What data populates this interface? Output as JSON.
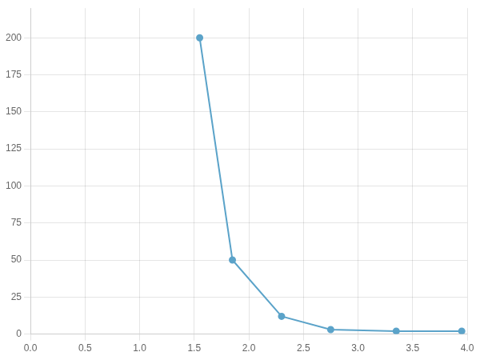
{
  "chart_data": {
    "type": "line",
    "x": [
      1.55,
      1.85,
      2.3,
      2.75,
      3.35,
      3.95
    ],
    "values": [
      200,
      50,
      12,
      3,
      2,
      2
    ],
    "color": "#5ba3c9",
    "marker": "circle",
    "xlim": [
      0.0,
      4.0
    ],
    "xticks": [
      {
        "value": 0,
        "label": "0.0"
      },
      0.5,
      {
        "value": 1,
        "label": "1.0"
      },
      1.5,
      {
        "value": 2,
        "label": "2.0"
      },
      2.5,
      {
        "value": 3,
        "label": "3.0"
      },
      3.5,
      {
        "value": 4,
        "label": "4.0"
      }
    ],
    "ylim": [
      0,
      220
    ],
    "yticks": [
      0,
      25,
      50,
      75,
      100,
      125,
      150,
      175,
      200
    ],
    "grid": true
  }
}
